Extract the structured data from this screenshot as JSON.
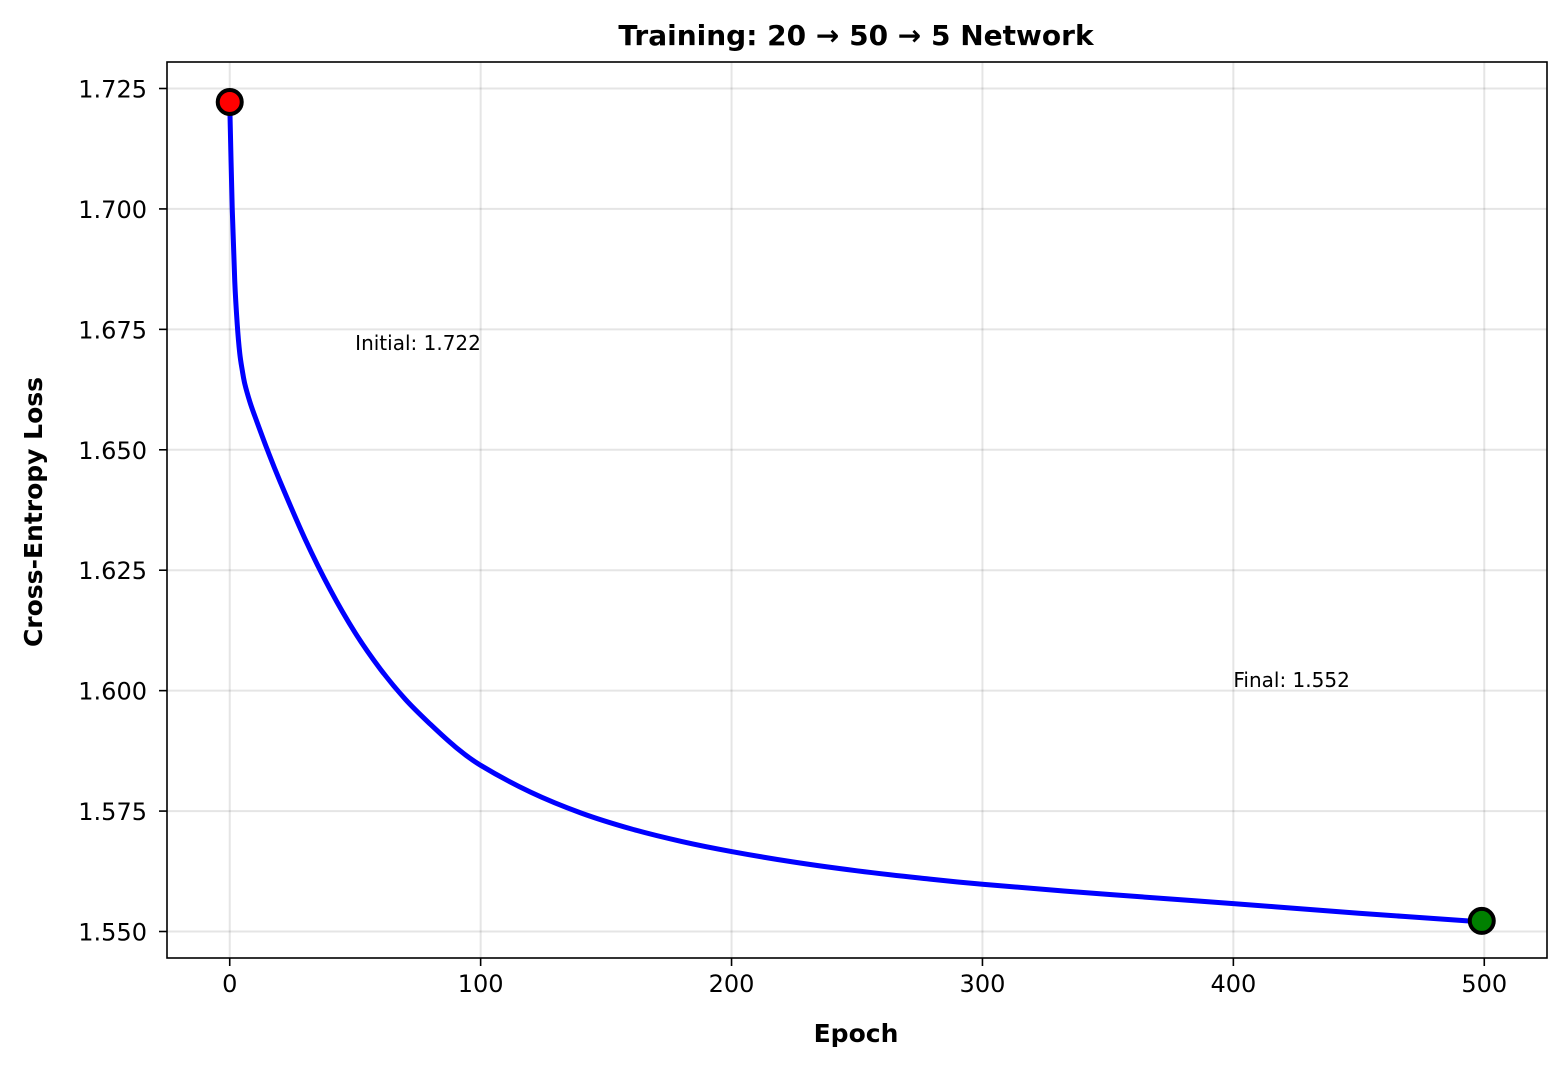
{
  "chart_data": {
    "type": "line",
    "title": "Training: 20 → 50 → 5 Network",
    "xlabel": "Epoch",
    "ylabel": "Cross-Entropy Loss",
    "xlim": [
      -25,
      525
    ],
    "ylim": [
      1.5445,
      1.7305
    ],
    "xticks": [
      0,
      100,
      200,
      300,
      400,
      500
    ],
    "xtick_labels": [
      "0",
      "100",
      "200",
      "300",
      "400",
      "500"
    ],
    "yticks": [
      1.55,
      1.575,
      1.6,
      1.625,
      1.65,
      1.675,
      1.7,
      1.725
    ],
    "ytick_labels": [
      "1.550",
      "1.575",
      "1.600",
      "1.625",
      "1.650",
      "1.675",
      "1.700",
      "1.725"
    ],
    "grid": true,
    "series": [
      {
        "color": "#0000ff",
        "x": [
          0,
          1,
          2,
          3,
          4,
          5,
          6,
          8,
          10,
          15,
          20,
          30,
          40,
          50,
          60,
          70,
          80,
          90,
          100,
          120,
          140,
          160,
          180,
          200,
          225,
          250,
          275,
          300,
          350,
          400,
          450,
          499
        ],
        "y": [
          1.722,
          1.7,
          1.685,
          1.676,
          1.67,
          1.6665,
          1.6637,
          1.66,
          1.657,
          1.65,
          1.6435,
          1.6315,
          1.621,
          1.612,
          1.6045,
          1.5982,
          1.593,
          1.5883,
          1.5845,
          1.5789,
          1.5746,
          1.5713,
          1.5687,
          1.5666,
          1.5644,
          1.5626,
          1.5611,
          1.5598,
          1.5577,
          1.5558,
          1.5538,
          1.552
        ]
      }
    ],
    "markers": [
      {
        "x": 0,
        "y": 1.7222,
        "fill": "#ff0000"
      },
      {
        "x": 499,
        "y": 1.5522,
        "fill": "#008000"
      }
    ],
    "annotations": [
      {
        "text": "Initial: 1.722",
        "x": 50,
        "y": 1.6722
      },
      {
        "text": "Final: 1.552",
        "x": 400,
        "y": 1.6022
      }
    ]
  }
}
